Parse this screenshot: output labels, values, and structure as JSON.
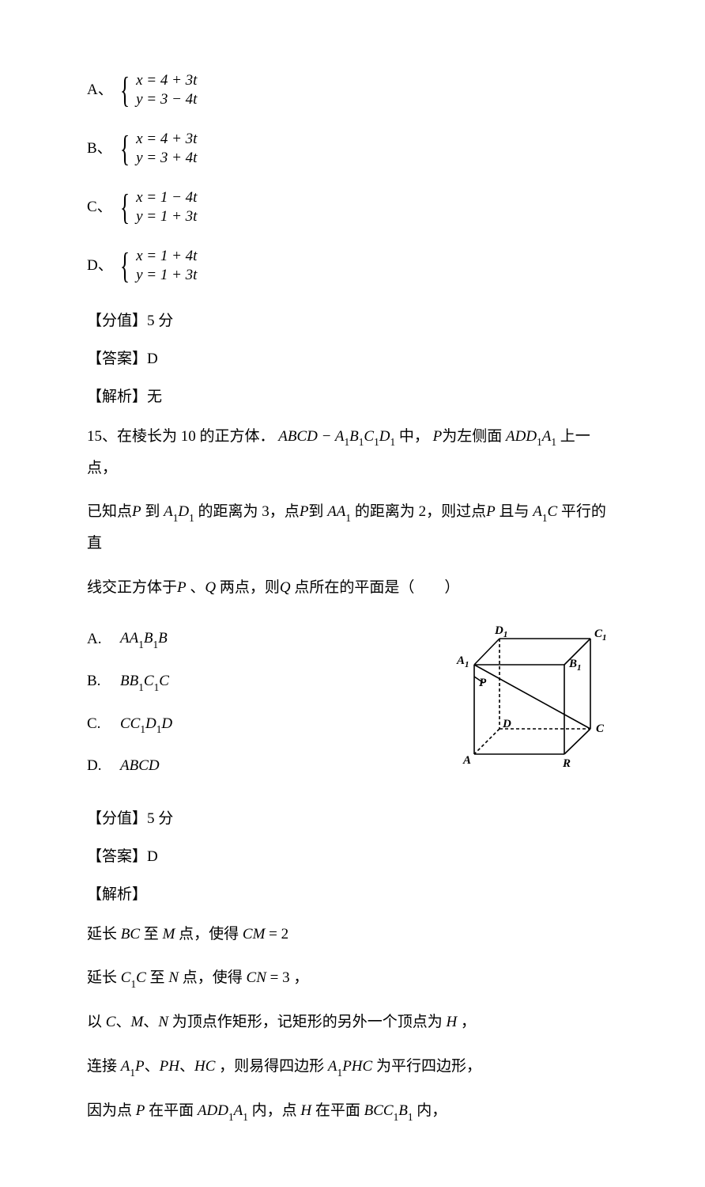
{
  "options14": [
    {
      "label": "A、",
      "eq1": "x = 4 + 3t",
      "eq2": "y = 3 − 4t"
    },
    {
      "label": "B、",
      "eq1": "x = 4 + 3t",
      "eq2": "y = 3 + 4t"
    },
    {
      "label": "C、",
      "eq1": "x = 1 − 4t",
      "eq2": "y = 1 + 3t"
    },
    {
      "label": "D、",
      "eq1": "x = 1 + 4t",
      "eq2": "y = 1 + 3t"
    }
  ],
  "score14": "【分值】5 分",
  "answer14": "【答案】D",
  "analysis14": "【解析】无",
  "q15_line1a": "15、在棱长为 10 的正方体．",
  "q15_body1": "ABCD − A",
  "q15_body2": "B",
  "q15_body3": "C",
  "q15_body4": "D",
  "q15_mid1": " 中， ",
  "q15_p": "P",
  "q15_mid2": "为左侧面",
  "q15_add1": "ADD",
  "q15_add2": "A",
  "q15_mid3": " 上一点，",
  "q15_line2a": "已知点",
  "q15_line2b": "到",
  "q15_a1d1_a": "A",
  "q15_a1d1_d": "D",
  "q15_line2c": "的距离为 3，点",
  "q15_line2d": "到",
  "q15_aa1_a": "AA",
  "q15_line2e": " 的距离为 2，则过点",
  "q15_line2f": " 且与",
  "q15_a1c_a": "A",
  "q15_a1c_c": "C",
  "q15_line2g": " 平行的直",
  "q15_line3a": "线交正方体于",
  "q15_line3b": "、",
  "q15_q": "Q",
  "q15_line3c": " 两点，则",
  "q15_line3d": " 点所在的平面是（　　）",
  "choices15": [
    {
      "label": "A.",
      "text": "AA₁B₁B"
    },
    {
      "label": "B.",
      "text": "BB₁C₁C"
    },
    {
      "label": "C.",
      "text": "CC₁D₁D"
    },
    {
      "label": "D.",
      "text": "ABCD"
    }
  ],
  "score15": "【分值】5 分",
  "answer15": "【答案】D",
  "analysis15": "【解析】",
  "sol1a": "延长 ",
  "sol1b": "BC",
  "sol1c": " 至 ",
  "sol1d": "M",
  "sol1e": " 点，使得 ",
  "sol1f": "CM",
  "sol1g": " = 2",
  "sol2a": "延长 ",
  "sol2b": "C",
  "sol2c": "C",
  "sol2d": " 至 ",
  "sol2e": "N",
  "sol2f": " 点，使得 ",
  "sol2g": "CN",
  "sol2h": " = 3 ，",
  "sol3a": "以 ",
  "sol3b": "C",
  "sol3c": "、",
  "sol3d": "M",
  "sol3e": "、",
  "sol3f": "N",
  "sol3g": " 为顶点作矩形，记矩形的另外一个顶点为 ",
  "sol3h": "H",
  "sol3i": " ，",
  "sol4a": "连接 ",
  "sol4b": "A",
  "sol4c": "P",
  "sol4d": "、",
  "sol4e": "PH",
  "sol4f": "、",
  "sol4g": "HC",
  "sol4h": " ，则易得四边形 ",
  "sol4i": "A",
  "sol4j": "PHC",
  "sol4k": " 为平行四边形，",
  "sol5a": "因为点 ",
  "sol5b": "P",
  "sol5c": " 在平面 ",
  "sol5d": "ADD",
  "sol5e": "A",
  "sol5f": " 内，点 ",
  "sol5g": "H",
  "sol5h": " 在平面 ",
  "sol5i": "BCC",
  "sol5j": "B",
  "sol5k": " 内，",
  "cube": {
    "labels": {
      "D1": "D",
      "D1s": "1",
      "C1": "C",
      "C1s": "1",
      "A1": "A",
      "A1s": "1",
      "B1": "B",
      "B1s": "1",
      "P": "P",
      "D": "D",
      "C": "C",
      "A": "A",
      "R": "R"
    },
    "stroke": "#000000",
    "stroke_width": 1.6,
    "dash": "4,3"
  }
}
